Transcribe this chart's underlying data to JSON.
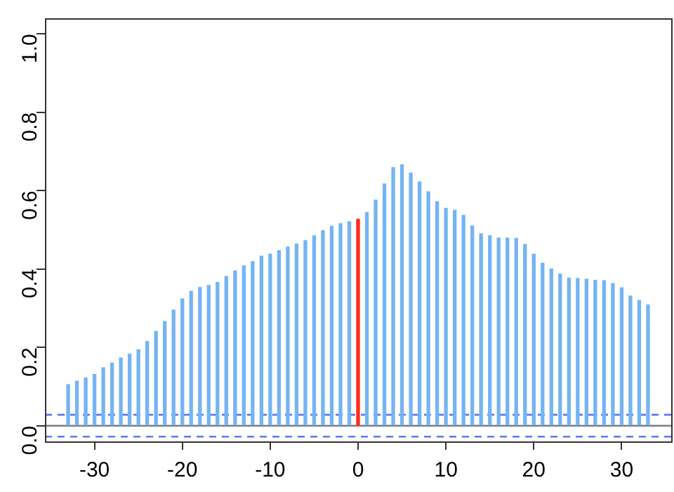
{
  "chart_data": {
    "type": "bar",
    "x": [
      -33,
      -32,
      -31,
      -30,
      -29,
      -28,
      -27,
      -26,
      -25,
      -24,
      -23,
      -22,
      -21,
      -20,
      -19,
      -18,
      -17,
      -16,
      -15,
      -14,
      -13,
      -12,
      -11,
      -10,
      -9,
      -8,
      -7,
      -6,
      -5,
      -4,
      -3,
      -2,
      -1,
      0,
      1,
      2,
      3,
      4,
      5,
      6,
      7,
      8,
      9,
      10,
      11,
      12,
      13,
      14,
      15,
      16,
      17,
      18,
      19,
      20,
      21,
      22,
      23,
      24,
      25,
      26,
      27,
      28,
      29,
      30,
      31,
      32,
      33
    ],
    "values": [
      0.105,
      0.114,
      0.122,
      0.131,
      0.148,
      0.16,
      0.173,
      0.183,
      0.194,
      0.215,
      0.241,
      0.266,
      0.295,
      0.324,
      0.343,
      0.353,
      0.358,
      0.366,
      0.381,
      0.395,
      0.408,
      0.419,
      0.433,
      0.438,
      0.447,
      0.456,
      0.464,
      0.473,
      0.485,
      0.498,
      0.509,
      0.516,
      0.521,
      0.527,
      0.544,
      0.576,
      0.617,
      0.659,
      0.666,
      0.645,
      0.622,
      0.597,
      0.572,
      0.555,
      0.55,
      0.537,
      0.51,
      0.49,
      0.485,
      0.479,
      0.479,
      0.478,
      0.463,
      0.438,
      0.415,
      0.4,
      0.387,
      0.377,
      0.376,
      0.374,
      0.371,
      0.37,
      0.363,
      0.352,
      0.331,
      0.32,
      0.308
    ],
    "colors": [
      "#74b4f4",
      "#74b4f4",
      "#74b4f4",
      "#74b4f4",
      "#74b4f4",
      "#74b4f4",
      "#74b4f4",
      "#74b4f4",
      "#74b4f4",
      "#74b4f4",
      "#74b4f4",
      "#74b4f4",
      "#74b4f4",
      "#74b4f4",
      "#74b4f4",
      "#74b4f4",
      "#74b4f4",
      "#74b4f4",
      "#74b4f4",
      "#74b4f4",
      "#74b4f4",
      "#74b4f4",
      "#74b4f4",
      "#74b4f4",
      "#74b4f4",
      "#74b4f4",
      "#74b4f4",
      "#74b4f4",
      "#74b4f4",
      "#74b4f4",
      "#74b4f4",
      "#74b4f4",
      "#74b4f4",
      "#ff2a1a",
      "#74b4f4",
      "#74b4f4",
      "#74b4f4",
      "#74b4f4",
      "#74b4f4",
      "#74b4f4",
      "#74b4f4",
      "#74b4f4",
      "#74b4f4",
      "#74b4f4",
      "#74b4f4",
      "#74b4f4",
      "#74b4f4",
      "#74b4f4",
      "#74b4f4",
      "#74b4f4",
      "#74b4f4",
      "#74b4f4",
      "#74b4f4",
      "#74b4f4",
      "#74b4f4",
      "#74b4f4",
      "#74b4f4",
      "#74b4f4",
      "#74b4f4",
      "#74b4f4",
      "#74b4f4",
      "#74b4f4",
      "#74b4f4",
      "#74b4f4",
      "#74b4f4",
      "#74b4f4",
      "#74b4f4"
    ],
    "xlim": [
      -35.64,
      35.64
    ],
    "xticks": [
      -30,
      -20,
      -10,
      0,
      10,
      20,
      30
    ],
    "ylim": [
      -0.04,
      1.04
    ],
    "yticks": [
      {
        "value": 0,
        "label": "0.0"
      },
      {
        "value": 0.2,
        "label": "0.2"
      },
      {
        "value": 0.4,
        "label": "0.4"
      },
      {
        "value": 0.6,
        "label": "0.6"
      },
      {
        "value": 0.8,
        "label": "0.8"
      },
      {
        "value": 1,
        "label": "1.0"
      }
    ],
    "ref_lines": [
      {
        "axis": "y",
        "value": 0,
        "color": "#7f7f7f",
        "line_style": "solid"
      },
      {
        "axis": "y",
        "value": 0.028,
        "color": "#5a78f5",
        "line_style": "dashed"
      },
      {
        "axis": "y",
        "value": -0.028,
        "color": "#5a78f5",
        "line_style": "dashed"
      }
    ],
    "grid": false,
    "legend": false
  }
}
